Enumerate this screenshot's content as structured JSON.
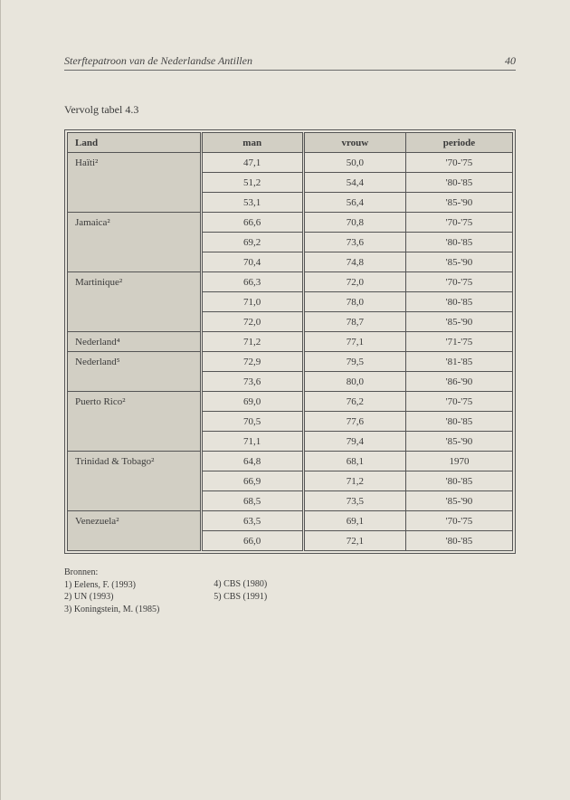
{
  "header": {
    "title": "Sterftepatroon van de Nederlandse Antillen",
    "page_number": "40"
  },
  "caption": "Vervolg tabel 4.3",
  "columns": {
    "land": "Land",
    "man": "man",
    "vrouw": "vrouw",
    "periode": "periode"
  },
  "groups": [
    {
      "land": "Haïti²",
      "rows": [
        {
          "man": "47,1",
          "vrouw": "50,0",
          "periode": "'70-'75"
        },
        {
          "man": "51,2",
          "vrouw": "54,4",
          "periode": "'80-'85"
        },
        {
          "man": "53,1",
          "vrouw": "56,4",
          "periode": "'85-'90"
        }
      ]
    },
    {
      "land": "Jamaica²",
      "rows": [
        {
          "man": "66,6",
          "vrouw": "70,8",
          "periode": "'70-'75"
        },
        {
          "man": "69,2",
          "vrouw": "73,6",
          "periode": "'80-'85"
        },
        {
          "man": "70,4",
          "vrouw": "74,8",
          "periode": "'85-'90"
        }
      ]
    },
    {
      "land": "Martinique²",
      "rows": [
        {
          "man": "66,3",
          "vrouw": "72,0",
          "periode": "'70-'75"
        },
        {
          "man": "71,0",
          "vrouw": "78,0",
          "periode": "'80-'85"
        },
        {
          "man": "72,0",
          "vrouw": "78,7",
          "periode": "'85-'90"
        }
      ]
    },
    {
      "land": "Nederland⁴",
      "rows": [
        {
          "man": "71,2",
          "vrouw": "77,1",
          "periode": "'71-'75"
        }
      ]
    },
    {
      "land": "Nederland⁵",
      "rows": [
        {
          "man": "72,9",
          "vrouw": "79,5",
          "periode": "'81-'85"
        },
        {
          "man": "73,6",
          "vrouw": "80,0",
          "periode": "'86-'90"
        }
      ]
    },
    {
      "land": "Puerto Rico²",
      "rows": [
        {
          "man": "69,0",
          "vrouw": "76,2",
          "periode": "'70-'75"
        },
        {
          "man": "70,5",
          "vrouw": "77,6",
          "periode": "'80-'85"
        },
        {
          "man": "71,1",
          "vrouw": "79,4",
          "periode": "'85-'90"
        }
      ]
    },
    {
      "land": "Trinidad & Tobago²",
      "rows": [
        {
          "man": "64,8",
          "vrouw": "68,1",
          "periode": "1970"
        },
        {
          "man": "66,9",
          "vrouw": "71,2",
          "periode": "'80-'85"
        },
        {
          "man": "68,5",
          "vrouw": "73,5",
          "periode": "'85-'90"
        }
      ]
    },
    {
      "land": "Venezuela²",
      "rows": [
        {
          "man": "63,5",
          "vrouw": "69,1",
          "periode": "'70-'75"
        },
        {
          "man": "66,0",
          "vrouw": "72,1",
          "periode": "'80-'85"
        }
      ]
    }
  ],
  "sources": {
    "heading": "Bronnen:",
    "col1": [
      "1) Eelens, F. (1993)",
      "2) UN (1993)",
      "3) Koningstein, M. (1985)"
    ],
    "col2": [
      "4) CBS (1980)",
      "5) CBS (1991)"
    ]
  },
  "col_widths": {
    "land": "30%",
    "man": "23%",
    "vrouw": "23%",
    "periode": "24%"
  },
  "colors": {
    "page_bg": "#e8e5dc",
    "land_bg": "#d2cfc4",
    "cell_bg": "#e6e3da",
    "border": "#555555",
    "text": "#3a3a3a"
  }
}
